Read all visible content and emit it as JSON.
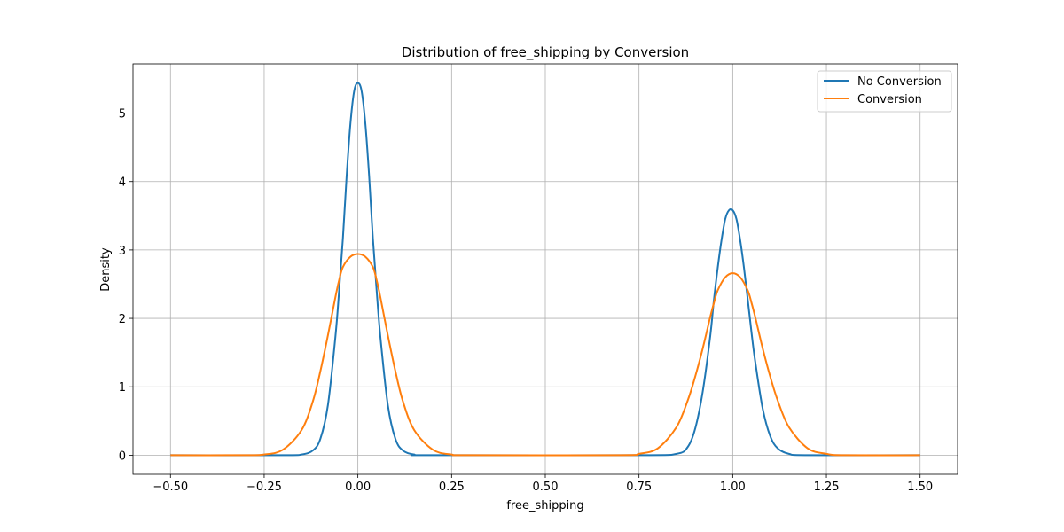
{
  "chart_data": {
    "type": "line",
    "title": "Distribution of free_shipping by Conversion",
    "xlabel": "free_shipping",
    "ylabel": "Density",
    "xlim": [
      -0.6,
      1.6
    ],
    "ylim": [
      -0.28,
      5.72
    ],
    "grid": true,
    "legend_position": "top-right",
    "x_ticks": [
      -0.5,
      -0.25,
      0.0,
      0.25,
      0.5,
      0.75,
      1.0,
      1.25,
      1.5
    ],
    "x_tick_labels": [
      "−0.50",
      "−0.25",
      "0.00",
      "0.25",
      "0.50",
      "0.75",
      "1.00",
      "1.25",
      "1.50"
    ],
    "y_ticks": [
      0,
      1,
      2,
      3,
      4,
      5
    ],
    "y_tick_labels": [
      "0",
      "1",
      "2",
      "3",
      "4",
      "5"
    ],
    "series": [
      {
        "name": "No Conversion",
        "color": "#1f77b4",
        "x": [
          -0.5,
          -0.2,
          -0.15,
          -0.12,
          -0.1,
          -0.08,
          -0.06,
          -0.05,
          -0.04,
          -0.03,
          -0.02,
          -0.01,
          0.0,
          0.01,
          0.02,
          0.03,
          0.04,
          0.05,
          0.06,
          0.08,
          0.1,
          0.12,
          0.15,
          0.2,
          0.75,
          0.85,
          0.88,
          0.9,
          0.92,
          0.94,
          0.95,
          0.96,
          0.97,
          0.98,
          0.99,
          1.0,
          1.01,
          1.02,
          1.03,
          1.04,
          1.05,
          1.06,
          1.08,
          1.1,
          1.12,
          1.15,
          1.2,
          1.5
        ],
        "y": [
          0.0,
          0.0,
          0.01,
          0.07,
          0.24,
          0.73,
          1.73,
          2.41,
          3.17,
          4.08,
          4.84,
          5.32,
          5.44,
          5.32,
          4.84,
          4.08,
          3.17,
          2.41,
          1.73,
          0.73,
          0.24,
          0.07,
          0.01,
          0.0,
          0.0,
          0.02,
          0.12,
          0.39,
          0.93,
          1.74,
          2.28,
          2.74,
          3.14,
          3.45,
          3.58,
          3.58,
          3.45,
          3.14,
          2.74,
          2.28,
          1.8,
          1.37,
          0.68,
          0.28,
          0.1,
          0.02,
          0.0,
          0.0
        ]
      },
      {
        "name": "Conversion",
        "color": "#ff7f0e",
        "x": [
          -0.5,
          -0.3,
          -0.25,
          -0.2,
          -0.15,
          -0.12,
          -0.1,
          -0.08,
          -0.06,
          -0.05,
          -0.04,
          -0.02,
          0.0,
          0.02,
          0.04,
          0.05,
          0.06,
          0.08,
          0.1,
          0.12,
          0.15,
          0.2,
          0.25,
          0.3,
          0.7,
          0.75,
          0.8,
          0.85,
          0.88,
          0.9,
          0.92,
          0.94,
          0.95,
          0.96,
          0.98,
          1.0,
          1.02,
          1.04,
          1.05,
          1.06,
          1.08,
          1.1,
          1.12,
          1.15,
          1.2,
          1.25,
          1.3,
          1.5
        ],
        "y": [
          0.0,
          0.0,
          0.01,
          0.08,
          0.37,
          0.79,
          1.23,
          1.75,
          2.31,
          2.56,
          2.75,
          2.9,
          2.94,
          2.9,
          2.75,
          2.56,
          2.31,
          1.75,
          1.23,
          0.79,
          0.37,
          0.08,
          0.01,
          0.0,
          0.0,
          0.02,
          0.1,
          0.41,
          0.8,
          1.15,
          1.56,
          2.02,
          2.23,
          2.41,
          2.6,
          2.66,
          2.6,
          2.41,
          2.23,
          2.02,
          1.56,
          1.15,
          0.8,
          0.41,
          0.1,
          0.02,
          0.0,
          0.0
        ]
      }
    ]
  }
}
